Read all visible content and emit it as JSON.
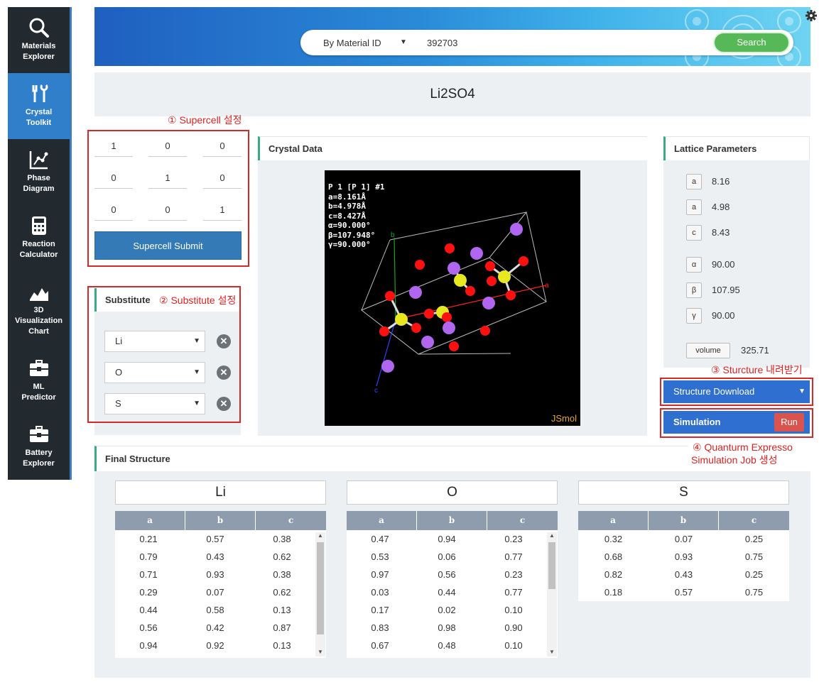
{
  "sidebar": {
    "items": [
      {
        "line1": "Materials",
        "line2": "Explorer",
        "icon": "magnifier-icon"
      },
      {
        "line1": "Crystal",
        "line2": "Toolkit",
        "icon": "tools-icon"
      },
      {
        "line1": "Phase",
        "line2": "Diagram",
        "icon": "phase-chart-icon"
      },
      {
        "line1": "Reaction",
        "line2": "Calculator",
        "icon": "calculator-icon"
      },
      {
        "line1": "3D",
        "line2": "Visualization",
        "line3": "Chart",
        "icon": "3d-chart-icon"
      },
      {
        "line1": "ML",
        "line2": "Predictor",
        "icon": "toolbox-icon"
      },
      {
        "line1": "Battery",
        "line2": "Explorer",
        "icon": "toolbox-icon"
      }
    ]
  },
  "search": {
    "mode": "By Material ID",
    "value": "392703",
    "button": "Search"
  },
  "formula": "Li2SO4",
  "annotations": {
    "supercell": "① Supercell 설정",
    "substitute": "② Substitute 설정",
    "structure": "③ Sturcture 내려받기",
    "simulation_line1": "④ Quanturm Expresso",
    "simulation_line2": "Simulation Job 생성"
  },
  "supercell": {
    "matrix": [
      [
        "1",
        "0",
        "0"
      ],
      [
        "0",
        "1",
        "0"
      ],
      [
        "0",
        "0",
        "1"
      ]
    ],
    "submit": "Supercell Submit"
  },
  "substitute": {
    "title": "Substitute",
    "elements": [
      "Li",
      "O",
      "S"
    ]
  },
  "crystal": {
    "title": "Crystal Data",
    "info": "P 1 [P 1] #1\na=8.161Å\nb=4.978Å\nc=8.427Å\nα=90.000°\nβ=107.948°\nγ=90.000°",
    "brand": "JSmol",
    "axis_a": "a",
    "axis_b": "b",
    "axis_c": "c"
  },
  "lattice": {
    "title": "Lattice Parameters",
    "params": [
      {
        "label": "a",
        "value": "8.16"
      },
      {
        "label": "a",
        "value": "4.98"
      },
      {
        "label": "c",
        "value": "8.43"
      },
      {
        "label": "α",
        "value": "90.00"
      },
      {
        "label": "β",
        "value": "107.95"
      },
      {
        "label": "γ",
        "value": "90.00"
      }
    ],
    "volume_label": "volume",
    "volume_value": "325.71"
  },
  "actions": {
    "download": "Structure Download",
    "simulation": "Simulation",
    "run": "Run"
  },
  "final": {
    "title": "Final Structure",
    "columns": [
      "a",
      "b",
      "c"
    ],
    "tables": [
      {
        "element": "Li",
        "rows": [
          [
            "0.21",
            "0.57",
            "0.38"
          ],
          [
            "0.79",
            "0.43",
            "0.62"
          ],
          [
            "0.71",
            "0.93",
            "0.38"
          ],
          [
            "0.29",
            "0.07",
            "0.62"
          ],
          [
            "0.44",
            "0.58",
            "0.13"
          ],
          [
            "0.56",
            "0.42",
            "0.87"
          ],
          [
            "0.94",
            "0.92",
            "0.13"
          ]
        ]
      },
      {
        "element": "O",
        "rows": [
          [
            "0.47",
            "0.94",
            "0.23"
          ],
          [
            "0.53",
            "0.06",
            "0.77"
          ],
          [
            "0.97",
            "0.56",
            "0.23"
          ],
          [
            "0.03",
            "0.44",
            "0.77"
          ],
          [
            "0.17",
            "0.02",
            "0.10"
          ],
          [
            "0.83",
            "0.98",
            "0.90"
          ],
          [
            "0.67",
            "0.48",
            "0.10"
          ]
        ]
      },
      {
        "element": "S",
        "rows": [
          [
            "0.32",
            "0.07",
            "0.25"
          ],
          [
            "0.68",
            "0.93",
            "0.75"
          ],
          [
            "0.82",
            "0.43",
            "0.25"
          ],
          [
            "0.18",
            "0.57",
            "0.75"
          ]
        ]
      }
    ]
  },
  "colors": {
    "accent": "#2f7fcb",
    "annotation": "#e02020",
    "oxygen": "#ff0d0d",
    "sulfur": "#ffff30",
    "lithium": "#cc80ff"
  }
}
